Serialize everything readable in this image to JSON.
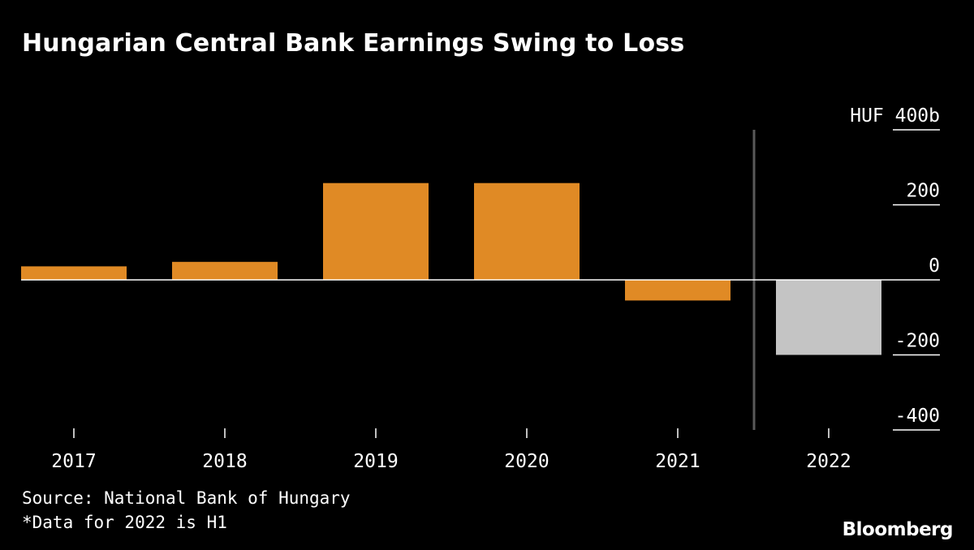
{
  "title": "Hungarian Central Bank Earnings Swing to Loss",
  "source": "Source: National Bank of Hungary",
  "note": "*Data for 2022 is H1",
  "logo": "Bloomberg",
  "colors": {
    "background": "#000000",
    "bar": "#e08a25",
    "bar_highlight": "#c4c4c4",
    "zero_line": "#ffffff",
    "divider": "#5a5a5a",
    "text": "#ffffff"
  },
  "chart_data": {
    "type": "bar",
    "categories": [
      "2017",
      "2018",
      "2019",
      "2020",
      "2021",
      "2022"
    ],
    "values": [
      36,
      48,
      258,
      258,
      -55,
      -200
    ],
    "highlight_category": "2022",
    "ylim": [
      -400,
      400
    ],
    "yticks": [
      400,
      200,
      0,
      -200,
      -400
    ],
    "ytick_labels": [
      "HUF 400b",
      "200",
      "0",
      "-200",
      "-400"
    ],
    "axis_position": "right",
    "grid": false
  }
}
